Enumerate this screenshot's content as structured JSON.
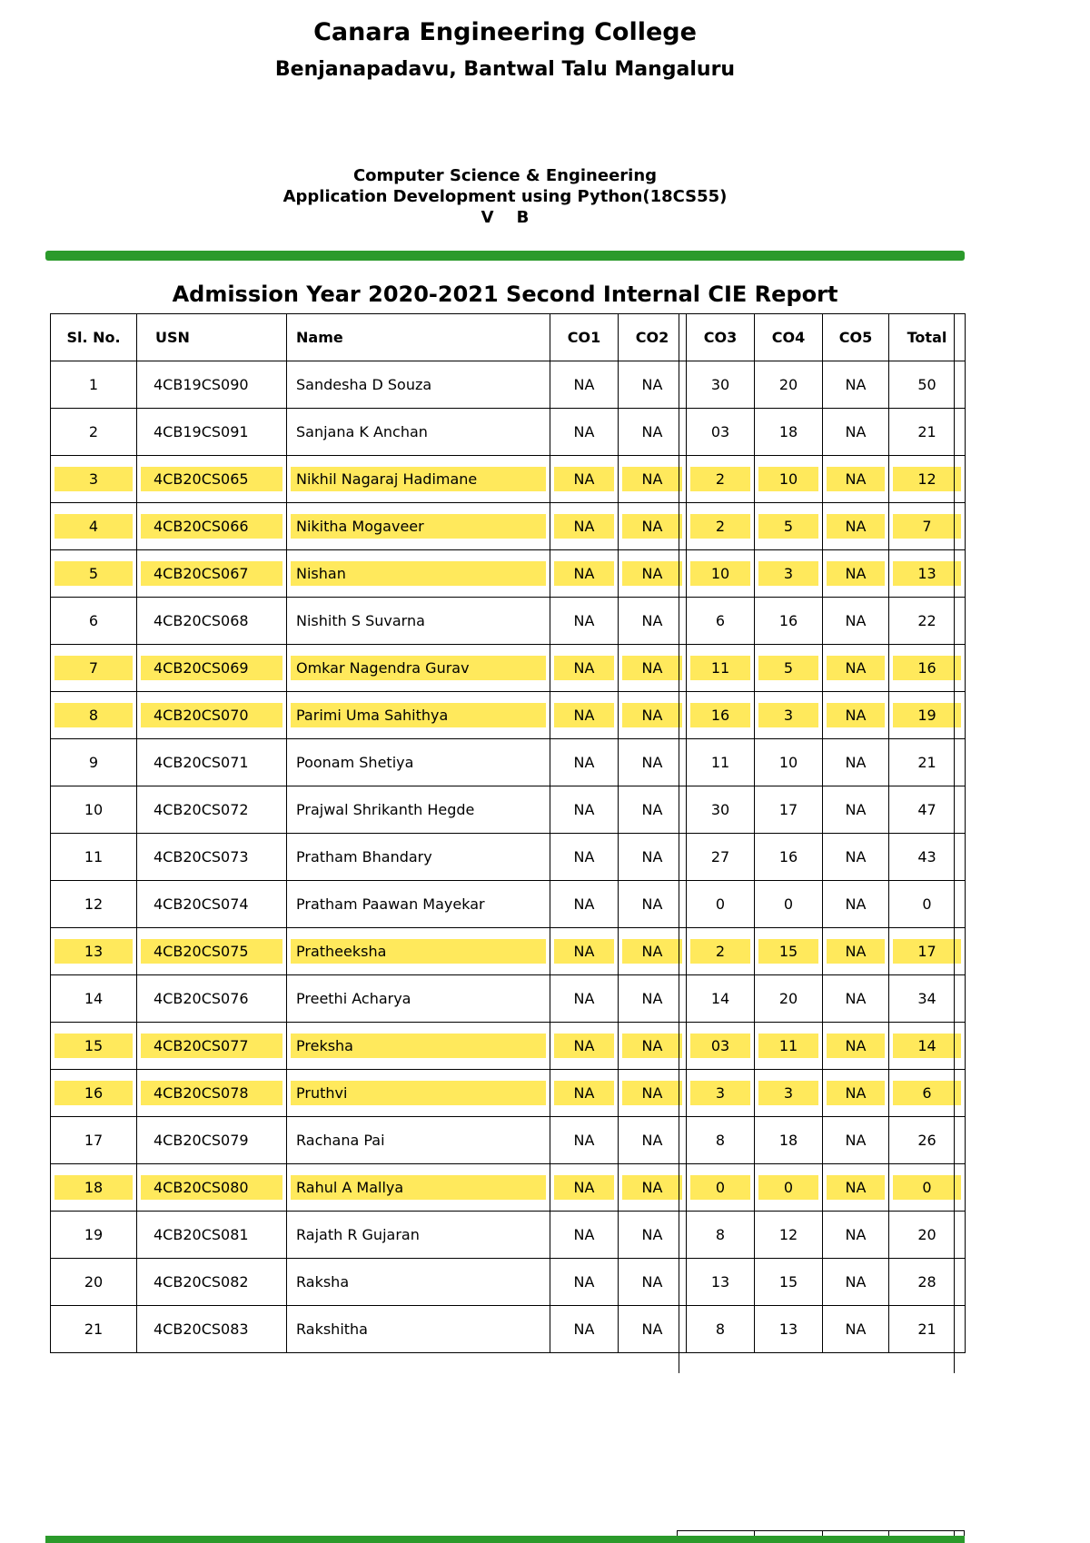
{
  "header": {
    "college_name": "Canara Engineering College",
    "college_address": "Benjanapadavu, Bantwal Talu Mangaluru",
    "department": "Computer Science & Engineering",
    "subject": "Application Development using Python(18CS55)",
    "semester_section": "V    B"
  },
  "report": {
    "title": "Admission Year 2020-2021 Second Internal CIE Report",
    "columns": [
      "Sl. No.",
      "USN",
      "Name",
      "CO1",
      "CO2",
      "CO3",
      "CO4",
      "CO5",
      "Total"
    ],
    "rows": [
      {
        "hl": false,
        "cells": [
          "1",
          "4CB19CS090",
          "Sandesha D Souza",
          "NA",
          "NA",
          "30",
          "20",
          "NA",
          "50"
        ]
      },
      {
        "hl": false,
        "cells": [
          "2",
          "4CB19CS091",
          "Sanjana K Anchan",
          "NA",
          "NA",
          "03",
          "18",
          "NA",
          "21"
        ]
      },
      {
        "hl": true,
        "cells": [
          "3",
          "4CB20CS065",
          "Nikhil Nagaraj Hadimane",
          "NA",
          "NA",
          "2",
          "10",
          "NA",
          "12"
        ]
      },
      {
        "hl": true,
        "cells": [
          "4",
          "4CB20CS066",
          "Nikitha Mogaveer",
          "NA",
          "NA",
          "2",
          "5",
          "NA",
          "7"
        ]
      },
      {
        "hl": true,
        "cells": [
          "5",
          "4CB20CS067",
          "Nishan",
          "NA",
          "NA",
          "10",
          "3",
          "NA",
          "13"
        ]
      },
      {
        "hl": false,
        "cells": [
          "6",
          "4CB20CS068",
          "Nishith S Suvarna",
          "NA",
          "NA",
          "6",
          "16",
          "NA",
          "22"
        ]
      },
      {
        "hl": true,
        "cells": [
          "7",
          "4CB20CS069",
          "Omkar Nagendra Gurav",
          "NA",
          "NA",
          "11",
          "5",
          "NA",
          "16"
        ]
      },
      {
        "hl": true,
        "cells": [
          "8",
          "4CB20CS070",
          "Parimi Uma Sahithya",
          "NA",
          "NA",
          "16",
          "3",
          "NA",
          "19"
        ]
      },
      {
        "hl": false,
        "cells": [
          "9",
          "4CB20CS071",
          "Poonam Shetiya",
          "NA",
          "NA",
          "11",
          "10",
          "NA",
          "21"
        ]
      },
      {
        "hl": false,
        "cells": [
          "10",
          "4CB20CS072",
          "Prajwal Shrikanth Hegde",
          "NA",
          "NA",
          "30",
          "17",
          "NA",
          "47"
        ]
      },
      {
        "hl": false,
        "cells": [
          "11",
          "4CB20CS073",
          "Pratham Bhandary",
          "NA",
          "NA",
          "27",
          "16",
          "NA",
          "43"
        ]
      },
      {
        "hl": false,
        "cells": [
          "12",
          "4CB20CS074",
          "Pratham Paawan Mayekar",
          "NA",
          "NA",
          "0",
          "0",
          "NA",
          "0"
        ]
      },
      {
        "hl": true,
        "cells": [
          "13",
          "4CB20CS075",
          "Pratheeksha",
          "NA",
          "NA",
          "2",
          "15",
          "NA",
          "17"
        ]
      },
      {
        "hl": false,
        "cells": [
          "14",
          "4CB20CS076",
          "Preethi Acharya",
          "NA",
          "NA",
          "14",
          "20",
          "NA",
          "34"
        ]
      },
      {
        "hl": true,
        "cells": [
          "15",
          "4CB20CS077",
          "Preksha",
          "NA",
          "NA",
          "03",
          "11",
          "NA",
          "14"
        ]
      },
      {
        "hl": true,
        "cells": [
          "16",
          "4CB20CS078",
          "Pruthvi",
          "NA",
          "NA",
          "3",
          "3",
          "NA",
          "6"
        ]
      },
      {
        "hl": false,
        "cells": [
          "17",
          "4CB20CS079",
          "Rachana Pai",
          "NA",
          "NA",
          "8",
          "18",
          "NA",
          "26"
        ]
      },
      {
        "hl": true,
        "cells": [
          "18",
          "4CB20CS080",
          "Rahul A Mallya",
          "NA",
          "NA",
          "0",
          "0",
          "NA",
          "0"
        ]
      },
      {
        "hl": false,
        "cells": [
          "19",
          "4CB20CS081",
          "Rajath R Gujaran",
          "NA",
          "NA",
          "8",
          "12",
          "NA",
          "20"
        ]
      },
      {
        "hl": false,
        "cells": [
          "20",
          "4CB20CS082",
          "Raksha",
          "NA",
          "NA",
          "13",
          "15",
          "NA",
          "28"
        ]
      },
      {
        "hl": false,
        "cells": [
          "21",
          "4CB20CS083",
          "Rakshitha",
          "NA",
          "NA",
          "8",
          "13",
          "NA",
          "21"
        ]
      }
    ]
  },
  "colors": {
    "divider_green": "#2b9a2b",
    "row_highlight": "#ffe95c"
  }
}
